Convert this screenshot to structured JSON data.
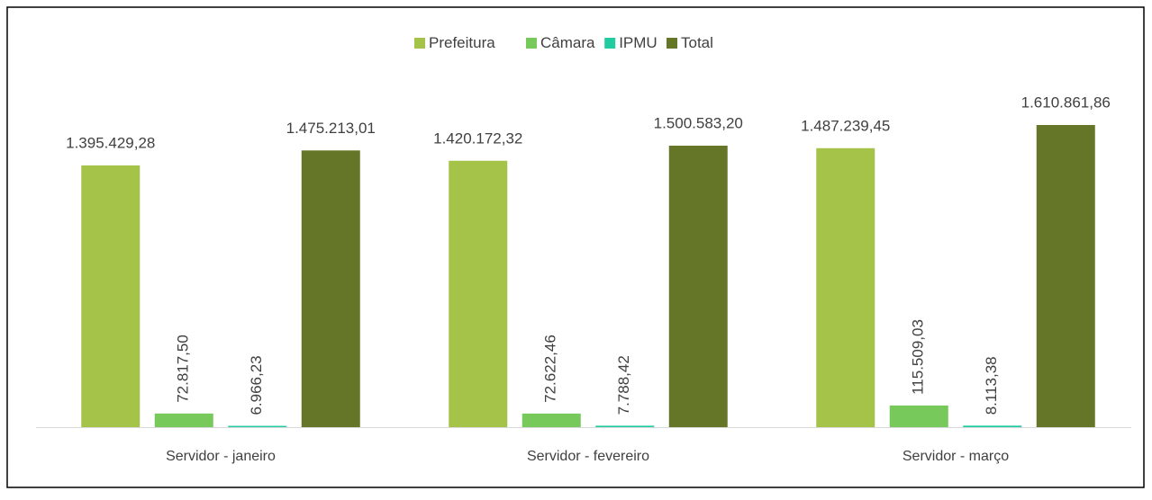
{
  "chart_data": {
    "type": "bar",
    "categories": [
      "Servidor - janeiro",
      "Servidor - fevereiro",
      "Servidor - março"
    ],
    "legend": "top",
    "series": [
      {
        "name": "Prefeitura",
        "color": "#a5c249",
        "values": [
          1395429.28,
          1420172.32,
          1487239.45
        ],
        "value_labels": [
          "1.395.429,28",
          "1.420.172,32",
          "1.487.239,45"
        ]
      },
      {
        "name": "Câmara",
        "color": "#77c95c",
        "values": [
          72817.5,
          72622.46,
          115509.03
        ],
        "value_labels": [
          "72.817,50",
          "72.622,46",
          "115.509,03"
        ]
      },
      {
        "name": "IPMU",
        "color": "#22cca0",
        "values": [
          6966.23,
          7788.42,
          8113.38
        ],
        "value_labels": [
          "6.966,23",
          "7.788,42",
          "8.113,38"
        ]
      },
      {
        "name": "Total",
        "color": "#667628",
        "values": [
          1475213.01,
          1500583.2,
          1610861.86
        ],
        "value_labels": [
          "1.475.213,01",
          "1.500.583,20",
          "1.610.861,86"
        ]
      }
    ]
  }
}
